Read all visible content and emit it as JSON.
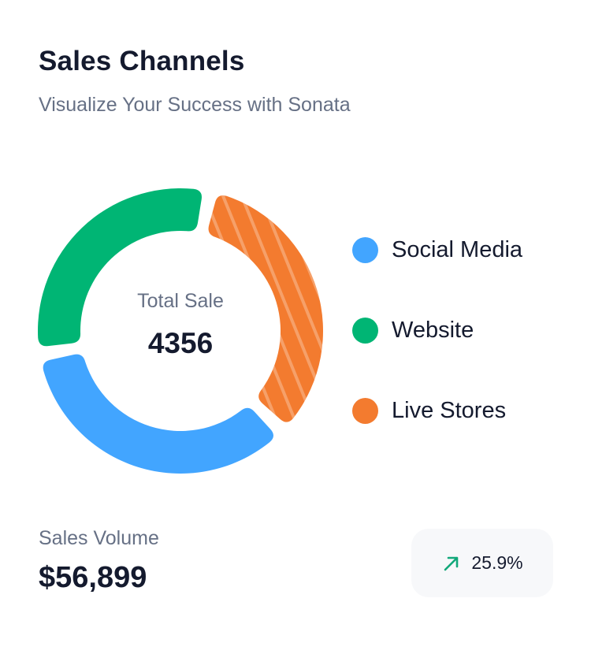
{
  "header": {
    "title": "Sales Channels",
    "subtitle": "Visualize Your Success with Sonata"
  },
  "chart_data": {
    "type": "pie",
    "title": "Sales Channels",
    "subtitle": "Visualize Your Success with Sonata",
    "center_label": "Total Sale",
    "center_value": "4356",
    "legend_position": "right",
    "series": [
      {
        "name": "Social Media",
        "value": 35,
        "color": "#42a5ff",
        "pattern": "solid"
      },
      {
        "name": "Website",
        "value": 31,
        "color": "#00b574",
        "pattern": "solid"
      },
      {
        "name": "Live Stores",
        "value": 34,
        "color": "#f37b2f",
        "pattern": "striped"
      }
    ]
  },
  "summary": {
    "volume_label": "Sales Volume",
    "volume_value": "$56,899",
    "growth_value": "25.9%",
    "growth_icon": "arrow-up-right-icon",
    "growth_color": "#12a87a"
  }
}
